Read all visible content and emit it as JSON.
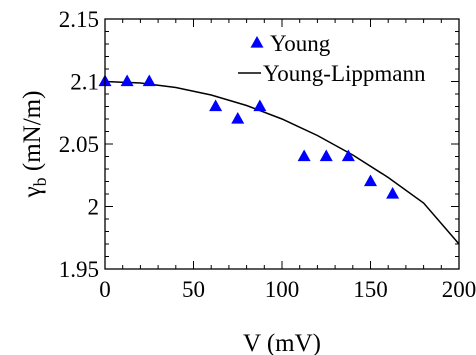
{
  "chart_data": {
    "type": "scatter",
    "title": "",
    "xlabel": "V (mV)",
    "ylabel_main": "γ",
    "ylabel_sub": "b",
    "ylabel_unit": " (mN/m)",
    "xlim": [
      0,
      200
    ],
    "ylim": [
      1.95,
      2.15
    ],
    "xticks": [
      0,
      50,
      100,
      150,
      200
    ],
    "xtick_labels": [
      "0",
      "50",
      "100",
      "150",
      "200"
    ],
    "yticks": [
      1.95,
      2.0,
      2.05,
      2.1,
      2.15
    ],
    "ytick_labels": [
      "1.95",
      "2",
      "2.05",
      "2.1",
      "2.15"
    ],
    "grid": false,
    "legend_position": "top-right",
    "series": [
      {
        "name": "Young",
        "kind": "markers",
        "marker": "triangle",
        "color": "#0000ff",
        "x": [
          0,
          12.5,
          25,
          62.5,
          75,
          87.5,
          112.5,
          125,
          137.5,
          150,
          162.5
        ],
        "y": [
          2.1,
          2.1,
          2.1,
          2.08,
          2.07,
          2.08,
          2.04,
          2.04,
          2.04,
          2.02,
          2.01
        ]
      },
      {
        "name": "Young-Lippmann",
        "kind": "line",
        "color": "#000000",
        "x": [
          0,
          20,
          40,
          60,
          80,
          100,
          120,
          140,
          160,
          180,
          200
        ],
        "y": [
          2.1,
          2.0988,
          2.0952,
          2.0892,
          2.0808,
          2.07,
          2.0568,
          2.0412,
          2.0232,
          2.0028,
          1.97
        ]
      }
    ]
  }
}
